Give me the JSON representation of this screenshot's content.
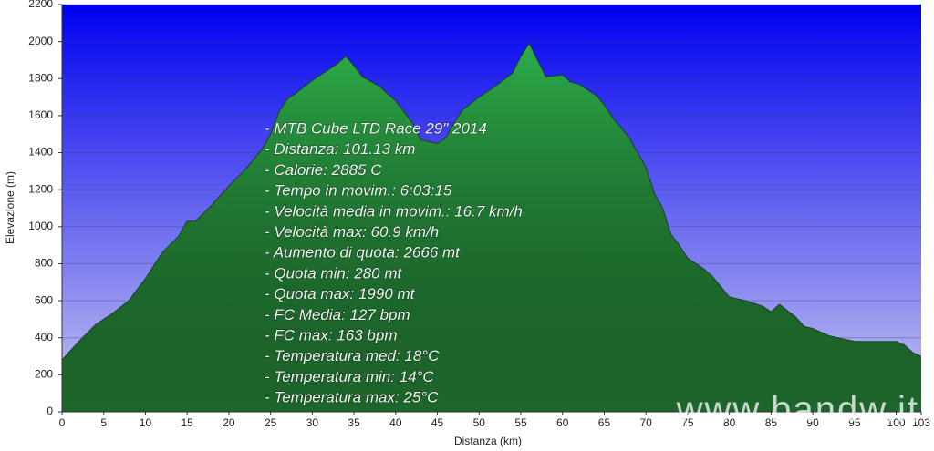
{
  "chart_data": {
    "type": "area",
    "ylabel": "Elevazione (m)",
    "xlabel": "Distanza  (km)",
    "x": [
      0,
      2,
      4,
      6,
      8,
      10,
      12,
      14,
      15,
      16,
      18,
      20,
      22,
      24,
      25,
      26,
      27,
      28,
      30,
      32,
      33,
      34,
      35,
      36,
      38,
      40,
      41,
      42,
      43,
      45,
      46,
      47,
      48,
      50,
      52,
      54,
      55,
      56,
      57,
      58,
      60,
      61,
      62,
      64,
      65,
      66,
      68,
      70,
      71,
      72,
      73,
      74,
      75,
      77,
      78,
      80,
      81,
      82,
      84,
      85,
      86,
      88,
      89,
      90,
      92,
      94,
      95,
      97,
      99,
      100,
      101,
      102,
      103
    ],
    "values": [
      280,
      380,
      470,
      530,
      600,
      720,
      860,
      950,
      1030,
      1030,
      1120,
      1220,
      1310,
      1420,
      1500,
      1620,
      1690,
      1720,
      1790,
      1850,
      1880,
      1920,
      1870,
      1810,
      1760,
      1680,
      1620,
      1560,
      1470,
      1450,
      1480,
      1560,
      1630,
      1700,
      1760,
      1830,
      1920,
      1990,
      1900,
      1810,
      1820,
      1780,
      1770,
      1710,
      1660,
      1590,
      1480,
      1320,
      1180,
      1100,
      960,
      900,
      830,
      770,
      730,
      620,
      610,
      600,
      570,
      540,
      580,
      510,
      460,
      450,
      410,
      390,
      380,
      380,
      380,
      380,
      360,
      320,
      300
    ],
    "color": "#2c9c42",
    "xlim": [
      0,
      103
    ],
    "xticks": [
      0,
      5,
      10,
      15,
      20,
      25,
      30,
      35,
      40,
      45,
      50,
      55,
      60,
      65,
      70,
      75,
      80,
      85,
      90,
      95,
      100,
      103
    ],
    "ylim": [
      0,
      2200
    ],
    "yticks": [
      0,
      200,
      400,
      600,
      800,
      1000,
      1200,
      1400,
      1600,
      1800,
      2000,
      2200
    ],
    "grid": true,
    "annotations": [
      "- MTB Cube LTD Race 29\" 2014",
      "- Distanza: 101.13 km",
      "- Calorie: 2885 C",
      "- Tempo in movim.: 6:03:15",
      "- Velocità media in movim.: 16.7 km/h",
      "- Velocità max: 60.9 km/h",
      "- Aumento di quota: 2666 mt",
      "- Quota min: 280 mt",
      "- Quota max: 1990 mt",
      "- FC Media: 127 bpm",
      "- FC max: 163 bpm",
      "- Temperatura med: 18°C",
      "- Temperatura min: 14°C",
      "- Temperatura max: 25°C"
    ],
    "watermark": "www.bandw.it"
  }
}
